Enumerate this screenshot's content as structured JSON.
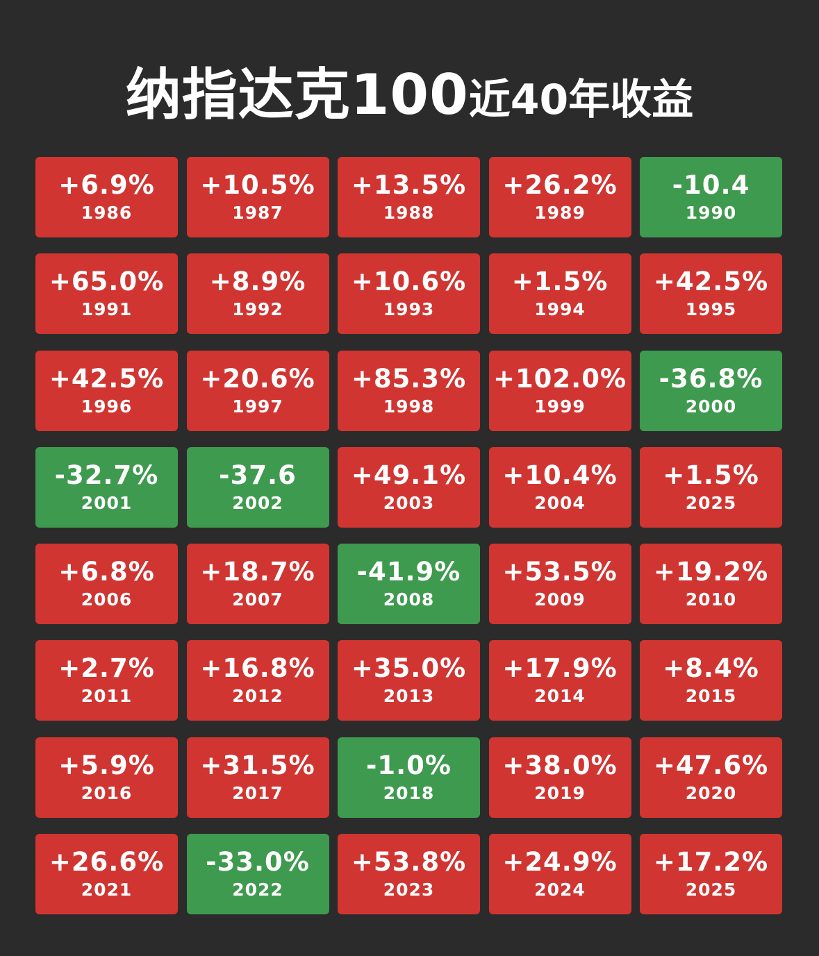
{
  "title": {
    "main": "纳指达克100",
    "sub": "近40年收益"
  },
  "colors": {
    "background": "#2b2b2b",
    "positive": "#d13532",
    "negative": "#3e9a4f",
    "text": "#ffffff"
  },
  "chart_data": {
    "type": "table",
    "title": "纳指达克100近40年收益",
    "columns": 5,
    "cells": [
      {
        "value": "+6.9%",
        "year": "1986",
        "sign": "positive"
      },
      {
        "value": "+10.5%",
        "year": "1987",
        "sign": "positive"
      },
      {
        "value": "+13.5%",
        "year": "1988",
        "sign": "positive"
      },
      {
        "value": "+26.2%",
        "year": "1989",
        "sign": "positive"
      },
      {
        "value": "-10.4",
        "year": "1990",
        "sign": "negative"
      },
      {
        "value": "+65.0%",
        "year": "1991",
        "sign": "positive"
      },
      {
        "value": "+8.9%",
        "year": "1992",
        "sign": "positive"
      },
      {
        "value": "+10.6%",
        "year": "1993",
        "sign": "positive"
      },
      {
        "value": "+1.5%",
        "year": "1994",
        "sign": "positive"
      },
      {
        "value": "+42.5%",
        "year": "1995",
        "sign": "positive"
      },
      {
        "value": "+42.5%",
        "year": "1996",
        "sign": "positive"
      },
      {
        "value": "+20.6%",
        "year": "1997",
        "sign": "positive"
      },
      {
        "value": "+85.3%",
        "year": "1998",
        "sign": "positive"
      },
      {
        "value": "+102.0%",
        "year": "1999",
        "sign": "positive"
      },
      {
        "value": "-36.8%",
        "year": "2000",
        "sign": "negative"
      },
      {
        "value": "-32.7%",
        "year": "2001",
        "sign": "negative"
      },
      {
        "value": "-37.6",
        "year": "2002",
        "sign": "negative"
      },
      {
        "value": "+49.1%",
        "year": "2003",
        "sign": "positive"
      },
      {
        "value": "+10.4%",
        "year": "2004",
        "sign": "positive"
      },
      {
        "value": "+1.5%",
        "year": "2025",
        "sign": "positive"
      },
      {
        "value": "+6.8%",
        "year": "2006",
        "sign": "positive"
      },
      {
        "value": "+18.7%",
        "year": "2007",
        "sign": "positive"
      },
      {
        "value": "-41.9%",
        "year": "2008",
        "sign": "negative"
      },
      {
        "value": "+53.5%",
        "year": "2009",
        "sign": "positive"
      },
      {
        "value": "+19.2%",
        "year": "2010",
        "sign": "positive"
      },
      {
        "value": "+2.7%",
        "year": "2011",
        "sign": "positive"
      },
      {
        "value": "+16.8%",
        "year": "2012",
        "sign": "positive"
      },
      {
        "value": "+35.0%",
        "year": "2013",
        "sign": "positive"
      },
      {
        "value": "+17.9%",
        "year": "2014",
        "sign": "positive"
      },
      {
        "value": "+8.4%",
        "year": "2015",
        "sign": "positive"
      },
      {
        "value": "+5.9%",
        "year": "2016",
        "sign": "positive"
      },
      {
        "value": "+31.5%",
        "year": "2017",
        "sign": "positive"
      },
      {
        "value": "-1.0%",
        "year": "2018",
        "sign": "negative"
      },
      {
        "value": "+38.0%",
        "year": "2019",
        "sign": "positive"
      },
      {
        "value": "+47.6%",
        "year": "2020",
        "sign": "positive"
      },
      {
        "value": "+26.6%",
        "year": "2021",
        "sign": "positive"
      },
      {
        "value": "-33.0%",
        "year": "2022",
        "sign": "negative"
      },
      {
        "value": "+53.8%",
        "year": "2023",
        "sign": "positive"
      },
      {
        "value": "+24.9%",
        "year": "2024",
        "sign": "positive"
      },
      {
        "value": "+17.2%",
        "year": "2025",
        "sign": "positive"
      }
    ]
  }
}
